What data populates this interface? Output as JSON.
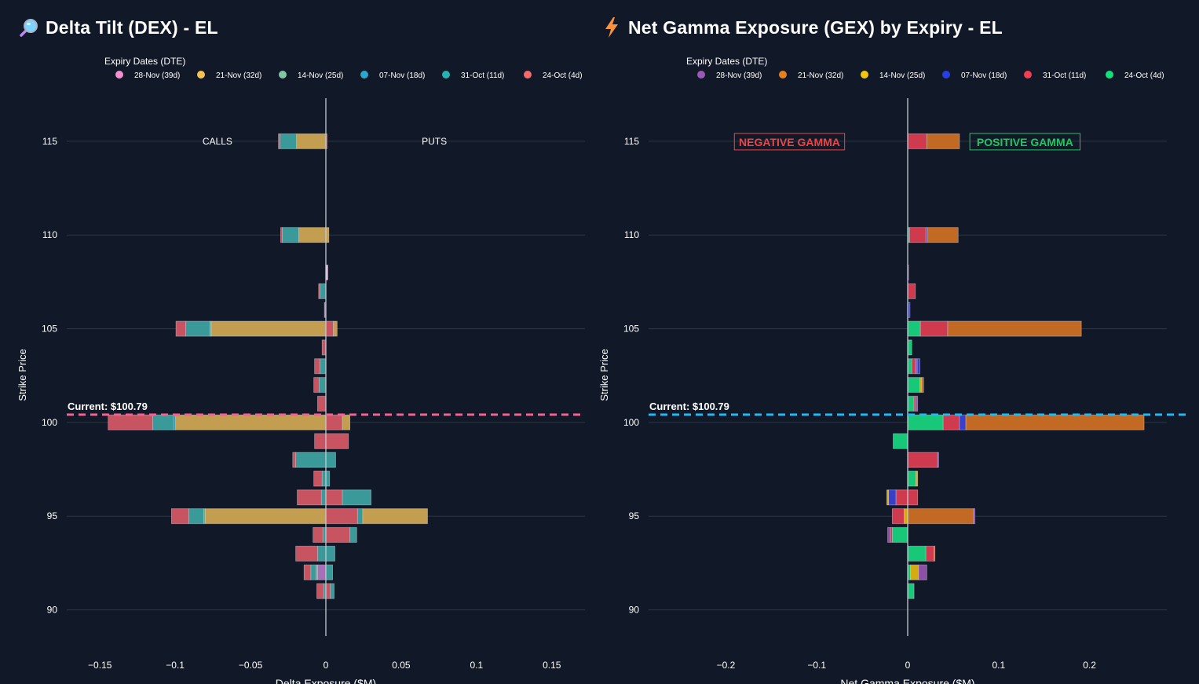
{
  "panels": {
    "left": {
      "title": "Delta Tilt (DEX) - EL",
      "icon": "magnifier-icon"
    },
    "right": {
      "title": "Net Gamma Exposure (GEX) by Expiry - EL",
      "icon": "lightning-icon"
    }
  },
  "chart_data": [
    {
      "type": "bar",
      "orientation": "horizontal",
      "barmode": "relative",
      "title": "Delta Tilt (DEX) - EL",
      "xlabel": "Delta Exposure ($M)",
      "ylabel": "Strike Price",
      "xlim": [
        -0.172,
        0.172
      ],
      "ylim": [
        88.6,
        117.3
      ],
      "xticks": [
        -0.15,
        -0.1,
        -0.05,
        0,
        0.05,
        0.1,
        0.15
      ],
      "xtick_labels": [
        "−0.15",
        "−0.1",
        "−0.05",
        "0",
        "0.05",
        "0.1",
        "0.15"
      ],
      "yticks": [
        90,
        95,
        100,
        105,
        110,
        115
      ],
      "yticks_labels": [
        "90",
        "95",
        "100",
        "105",
        "110",
        "115"
      ],
      "grid": true,
      "legend_title": "Expiry Dates (DTE)",
      "legend_position": "top",
      "current_price_label": "Current: $100.79",
      "current_price": 100.79,
      "current_line_color": "#f06292",
      "annotations": [
        {
          "text": "CALLS",
          "x": -0.072,
          "y": 115
        },
        {
          "text": "PUTS",
          "x": 0.072,
          "y": 115
        }
      ],
      "series": [
        {
          "name": "28-Nov (39d)",
          "color": "#f48fd0",
          "bar_color": "#a86fb8",
          "pos_color": "#e7c0df"
        },
        {
          "name": "21-Nov (32d)",
          "color": "#f2c353",
          "bar_color": "#c49e50"
        },
        {
          "name": "14-Nov (25d)",
          "color": "#7fc6a4",
          "bar_color": "#7aa890"
        },
        {
          "name": "07-Nov (18d)",
          "color": "#2aa7c9",
          "bar_color": "#2a8fab"
        },
        {
          "name": "31-Oct (11d)",
          "color": "#26b0b0",
          "bar_color": "#3a9a9a"
        },
        {
          "name": "24-Oct (4d)",
          "color": "#f26a6a",
          "bar_color": "#c85462"
        }
      ],
      "categories": [
        115,
        110,
        108,
        107,
        106,
        105,
        104,
        103,
        102,
        101,
        100,
        99,
        98,
        97,
        96,
        95,
        94,
        93,
        92,
        91
      ],
      "stacks": {
        "115": [
          [
            1,
            -0.0195
          ],
          [
            4,
            -0.011
          ],
          [
            5,
            -0.001
          ],
          [
            5,
            0.0008
          ]
        ],
        "110": [
          [
            1,
            -0.018
          ],
          [
            4,
            -0.011
          ],
          [
            5,
            -0.001
          ],
          [
            1,
            0.002
          ]
        ],
        "108": [
          [
            0,
            0.0013
          ]
        ],
        "107": [
          [
            4,
            -0.004
          ],
          [
            5,
            -0.0008
          ]
        ],
        "106": [
          [
            0,
            -0.001
          ]
        ],
        "105": [
          [
            1,
            -0.076
          ],
          [
            2,
            -0.001
          ],
          [
            4,
            -0.016
          ],
          [
            5,
            -0.0065
          ],
          [
            5,
            0.005
          ],
          [
            1,
            0.0025
          ]
        ],
        "104": [
          [
            5,
            -0.0025
          ]
        ],
        "103": [
          [
            4,
            -0.004
          ],
          [
            5,
            -0.0035
          ]
        ],
        "102": [
          [
            4,
            -0.0045
          ],
          [
            5,
            -0.0035
          ]
        ],
        "101": [
          [
            5,
            -0.0055
          ]
        ],
        "100": [
          [
            1,
            -0.1
          ],
          [
            3,
            -0.001
          ],
          [
            4,
            -0.014
          ],
          [
            5,
            -0.0295
          ],
          [
            5,
            0.011
          ],
          [
            1,
            0.005
          ]
        ],
        "99": [
          [
            5,
            -0.0075
          ],
          [
            5,
            0.015
          ]
        ],
        "98": [
          [
            4,
            -0.02
          ],
          [
            5,
            -0.002
          ],
          [
            4,
            0.0065
          ]
        ],
        "97": [
          [
            4,
            -0.0025
          ],
          [
            5,
            -0.0055
          ],
          [
            4,
            0.0025
          ]
        ],
        "96": [
          [
            4,
            -0.003
          ],
          [
            5,
            -0.016
          ],
          [
            5,
            0.011
          ],
          [
            4,
            0.019
          ]
        ],
        "95": [
          [
            1,
            -0.08
          ],
          [
            2,
            -0.001
          ],
          [
            4,
            -0.01
          ],
          [
            5,
            -0.0115
          ],
          [
            5,
            0.021
          ],
          [
            4,
            0.0035
          ],
          [
            1,
            0.043
          ]
        ],
        "94": [
          [
            4,
            -0.002
          ],
          [
            5,
            -0.0065
          ],
          [
            5,
            0.016
          ],
          [
            4,
            0.0045
          ]
        ],
        "93": [
          [
            4,
            -0.0055
          ],
          [
            5,
            -0.0145
          ],
          [
            4,
            0.006
          ]
        ],
        "92": [
          [
            0,
            -0.0055
          ],
          [
            2,
            -0.001
          ],
          [
            4,
            -0.0035
          ],
          [
            5,
            -0.0045
          ],
          [
            4,
            0.0045
          ]
        ],
        "91": [
          [
            4,
            -0.0015
          ],
          [
            5,
            -0.0045
          ],
          [
            5,
            0.003
          ],
          [
            4,
            0.0025
          ]
        ]
      }
    },
    {
      "type": "bar",
      "orientation": "horizontal",
      "barmode": "relative",
      "title": "Net Gamma Exposure (GEX) by Expiry - EL",
      "xlabel": "Net Gamma Exposure ($M)",
      "ylabel": "Strike Price",
      "xlim": [
        -0.285,
        0.285
      ],
      "ylim": [
        88.6,
        117.3
      ],
      "xticks": [
        -0.2,
        -0.1,
        0,
        0.1,
        0.2
      ],
      "xtick_labels": [
        "−0.2",
        "−0.1",
        "0",
        "0.1",
        "0.2"
      ],
      "yticks": [
        90,
        95,
        100,
        105,
        110,
        115
      ],
      "yticks_labels": [
        "90",
        "95",
        "100",
        "105",
        "110",
        "115"
      ],
      "grid": true,
      "legend_title": "Expiry Dates (DTE)",
      "legend_position": "top",
      "current_price_label": "Current: $100.79",
      "current_price": 100.79,
      "current_line_color": "#22b8f0",
      "annotations": [
        {
          "text": "NEGATIVE GAMMA",
          "x": -0.13,
          "y": 115,
          "color": "#ef4444"
        },
        {
          "text": "POSITIVE GAMMA",
          "x": 0.129,
          "y": 115,
          "color": "#22c55e"
        }
      ],
      "series": [
        {
          "name": "28-Nov (39d)",
          "color": "#9b59b6",
          "bar_color": "#8e4fa8"
        },
        {
          "name": "21-Nov (32d)",
          "color": "#e67e22",
          "bar_color": "#c26a24"
        },
        {
          "name": "14-Nov (25d)",
          "color": "#f1c40f",
          "bar_color": "#d4ac12"
        },
        {
          "name": "07-Nov (18d)",
          "color": "#2a3fe0",
          "bar_color": "#3b3fc8"
        },
        {
          "name": "31-Oct (11d)",
          "color": "#f03e52",
          "bar_color": "#d03a4e"
        },
        {
          "name": "24-Oct (4d)",
          "color": "#12e07a",
          "bar_color": "#16c878"
        }
      ],
      "categories": [
        115,
        110,
        108,
        107,
        106,
        105,
        104,
        103,
        102,
        101,
        100,
        99,
        98,
        97,
        96,
        95,
        94,
        93,
        92,
        91
      ],
      "stacks": {
        "115": [
          [
            4,
            0.021
          ],
          [
            1,
            0.036
          ]
        ],
        "110": [
          [
            5,
            0.002
          ],
          [
            4,
            0.018
          ],
          [
            3,
            0.0015
          ],
          [
            1,
            0.034
          ]
        ],
        "108": [
          [
            0,
            0.0008
          ]
        ],
        "107": [
          [
            4,
            0.0085
          ]
        ],
        "106": [
          [
            3,
            0.0025
          ]
        ],
        "105": [
          [
            5,
            0.014
          ],
          [
            4,
            0.03
          ],
          [
            1,
            0.147
          ]
        ],
        "104": [
          [
            5,
            0.0045
          ]
        ],
        "103": [
          [
            5,
            0.0045
          ],
          [
            4,
            0.004
          ],
          [
            0,
            0.002
          ],
          [
            3,
            0.003
          ]
        ],
        "102": [
          [
            5,
            0.0135
          ],
          [
            2,
            0.002
          ],
          [
            1,
            0.002
          ]
        ],
        "101": [
          [
            5,
            0.007
          ],
          [
            4,
            0.002
          ],
          [
            0,
            0.002
          ]
        ],
        "100": [
          [
            5,
            0.039
          ],
          [
            4,
            0.018
          ],
          [
            3,
            0.007
          ],
          [
            1,
            0.196
          ]
        ],
        "99": [
          [
            5,
            -0.016
          ]
        ],
        "98": [
          [
            4,
            0.033
          ],
          [
            0,
            0.001
          ]
        ],
        "97": [
          [
            5,
            0.009
          ],
          [
            2,
            0.002
          ]
        ],
        "96": [
          [
            4,
            0.011
          ],
          [
            4,
            -0.013
          ],
          [
            3,
            -0.008
          ],
          [
            2,
            -0.002
          ]
        ],
        "95": [
          [
            1,
            0.072
          ],
          [
            0,
            0.002
          ],
          [
            2,
            -0.004
          ],
          [
            4,
            -0.013
          ]
        ],
        "94": [
          [
            5,
            -0.017
          ],
          [
            4,
            -0.002
          ],
          [
            0,
            -0.003
          ]
        ],
        "93": [
          [
            5,
            0.02
          ],
          [
            4,
            0.009
          ],
          [
            1,
            0.001
          ]
        ],
        "92": [
          [
            5,
            0.003
          ],
          [
            2,
            0.009
          ],
          [
            0,
            0.009
          ]
        ],
        "91": [
          [
            5,
            0.007
          ]
        ]
      }
    }
  ]
}
